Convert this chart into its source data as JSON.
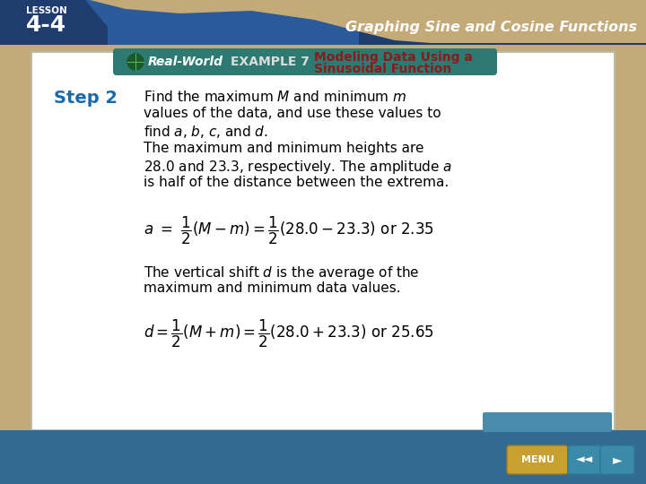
{
  "bg_color": "#c4aa78",
  "slide_bg": "#ffffff",
  "header_bg_dark": "#2a5a8a",
  "header_bg_tan": "#c4aa78",
  "teal_banner": "#2d7a72",
  "title_color": "#8b1a1a",
  "header_label": "Graphing Sine and Cosine Functions",
  "example_label": "EXAMPLE 7",
  "real_world_text": "Real-World",
  "step_label": "Step 2",
  "step_color": "#1a6aaa",
  "nav_teal": "#3a8aaa",
  "menu_gold": "#c8a030",
  "bottom_bar": "#3a6a8a"
}
